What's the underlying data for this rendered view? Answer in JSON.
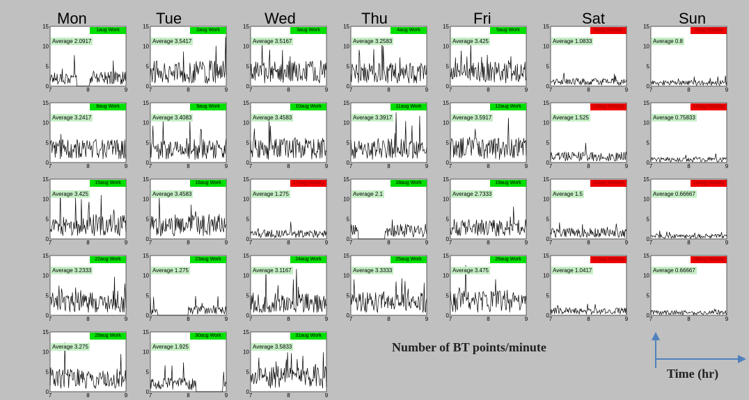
{
  "day_headers": [
    "Mon",
    "Tue",
    "Wed",
    "Thu",
    "Fri",
    "Sat",
    "Sun"
  ],
  "legend": {
    "y_axis_label": "Number of BT points/minute",
    "x_axis_label": "Time (hr)"
  },
  "colors": {
    "background": "#c0c0c0",
    "work_badge": "#00e000",
    "holiday_badge": "#ee0000",
    "average_box": "#c6efc6",
    "axis_arrow": "#4f81bd"
  },
  "chart_data": {
    "type": "line",
    "description_of_units": "Each panel: x = time (hr) from 7 to 9, y = number of BT points per minute, range 0 to 15",
    "xlim": [
      7,
      9
    ],
    "ylim": [
      0,
      15
    ],
    "x_ticks": [
      7,
      8,
      9
    ],
    "y_ticks": [
      0,
      5,
      10,
      15
    ],
    "xlabel": "Time (hr)",
    "ylabel": "Number of BT points/minute",
    "panels": [
      {
        "row": 0,
        "col": 0,
        "date": "1aug",
        "type": "Work",
        "average": "Average 2.0917",
        "avg_value": 2.0917,
        "gap": [
          0.35,
          0.52
        ]
      },
      {
        "row": 0,
        "col": 1,
        "date": "2aug",
        "type": "Work",
        "average": "Average 3.5417",
        "avg_value": 3.5417
      },
      {
        "row": 0,
        "col": 2,
        "date": "3aug",
        "type": "Work",
        "average": "Average 3.5167",
        "avg_value": 3.5167
      },
      {
        "row": 0,
        "col": 3,
        "date": "4aug",
        "type": "Work",
        "average": "Average 3.2583",
        "avg_value": 3.2583
      },
      {
        "row": 0,
        "col": 4,
        "date": "5aug",
        "type": "Work",
        "average": "Average 3.425",
        "avg_value": 3.425
      },
      {
        "row": 0,
        "col": 5,
        "date": "6aug",
        "type": "Holiday",
        "average": "Average 1.0833",
        "avg_value": 1.0833
      },
      {
        "row": 0,
        "col": 6,
        "date": "7aug",
        "type": "Holiday",
        "average": "Average 0.8",
        "avg_value": 0.8
      },
      {
        "row": 1,
        "col": 0,
        "date": "8aug",
        "type": "Work",
        "average": "Average 3.2417",
        "avg_value": 3.2417
      },
      {
        "row": 1,
        "col": 1,
        "date": "9aug",
        "type": "Work",
        "average": "Average 3.4083",
        "avg_value": 3.4083
      },
      {
        "row": 1,
        "col": 2,
        "date": "10aug",
        "type": "Work",
        "average": "Average 3.4583",
        "avg_value": 3.4583
      },
      {
        "row": 1,
        "col": 3,
        "date": "11aug",
        "type": "Work",
        "average": "Average 3.3917",
        "avg_value": 3.3917
      },
      {
        "row": 1,
        "col": 4,
        "date": "12aug",
        "type": "Work",
        "average": "Average 3.5917",
        "avg_value": 3.5917
      },
      {
        "row": 1,
        "col": 5,
        "date": "13aug",
        "type": "Holiday",
        "average": "Average 1.525",
        "avg_value": 1.525
      },
      {
        "row": 1,
        "col": 6,
        "date": "14aug",
        "type": "Holiday",
        "average": "Average 0.75833",
        "avg_value": 0.75833
      },
      {
        "row": 2,
        "col": 0,
        "date": "15aug",
        "type": "Work",
        "average": "Average 3.425",
        "avg_value": 3.425
      },
      {
        "row": 2,
        "col": 1,
        "date": "16aug",
        "type": "Work",
        "average": "Average 3.4583",
        "avg_value": 3.4583
      },
      {
        "row": 2,
        "col": 2,
        "date": "17aug",
        "type": "Holiday",
        "average": "Average 1.275",
        "avg_value": 1.275
      },
      {
        "row": 2,
        "col": 3,
        "date": "18aug",
        "type": "Work",
        "average": "Average 2.1",
        "avg_value": 2.1,
        "gap": [
          0.1,
          0.45
        ]
      },
      {
        "row": 2,
        "col": 4,
        "date": "19aug",
        "type": "Work",
        "average": "Average 2.7333",
        "avg_value": 2.7333
      },
      {
        "row": 2,
        "col": 5,
        "date": "20aug",
        "type": "Holiday",
        "average": "Average 1.5",
        "avg_value": 1.5
      },
      {
        "row": 2,
        "col": 6,
        "date": "21aug",
        "type": "Holiday",
        "average": "Average 0.66667",
        "avg_value": 0.66667
      },
      {
        "row": 3,
        "col": 0,
        "date": "22aug",
        "type": "Work",
        "average": "Average 3.2333",
        "avg_value": 3.2333
      },
      {
        "row": 3,
        "col": 1,
        "date": "23aug",
        "type": "Work",
        "average": "Average 1.275",
        "avg_value": 1.275,
        "gap": [
          0.1,
          0.5
        ]
      },
      {
        "row": 3,
        "col": 2,
        "date": "24aug",
        "type": "Work",
        "average": "Average 3.1167",
        "avg_value": 3.1167
      },
      {
        "row": 3,
        "col": 3,
        "date": "25aug",
        "type": "Work",
        "average": "Average 3.3333",
        "avg_value": 3.3333
      },
      {
        "row": 3,
        "col": 4,
        "date": "26aug",
        "type": "Work",
        "average": "Average 3.475",
        "avg_value": 3.475
      },
      {
        "row": 3,
        "col": 5,
        "date": "27aug",
        "type": "Holiday",
        "average": "Average 1.0417",
        "avg_value": 1.0417
      },
      {
        "row": 3,
        "col": 6,
        "date": "28aug",
        "type": "Holiday",
        "average": "Average 0.66667",
        "avg_value": 0.66667
      },
      {
        "row": 4,
        "col": 0,
        "date": "29aug",
        "type": "Work",
        "average": "Average 3.275",
        "avg_value": 3.275
      },
      {
        "row": 4,
        "col": 1,
        "date": "30aug",
        "type": "Work",
        "average": "Average 1.925",
        "avg_value": 1.925,
        "gap": [
          0.6,
          0.95
        ]
      },
      {
        "row": 4,
        "col": 2,
        "date": "31aug",
        "type": "Work",
        "average": "Average 3.5833",
        "avg_value": 3.5833
      }
    ]
  }
}
